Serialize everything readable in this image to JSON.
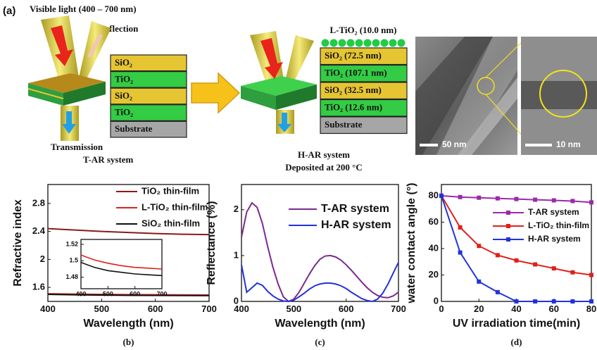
{
  "panel_a": {
    "label": "(a)",
    "light": "Visible light (400 – 700 nm)",
    "reflection": "Reflection",
    "transmission": "Transmission",
    "t_ar": {
      "title": "T-AR system",
      "layers": [
        "SiO₂",
        "TiO₂",
        "SiO₂",
        "TiO₂",
        "Substrate"
      ]
    },
    "h_ar": {
      "title": "H-AR system",
      "subtitle": "Deposited at 200 °C",
      "top_layer": "L-TiO₂ (10.0 nm)",
      "layers": [
        "SiO₂ (72.5 nm)",
        "TiO₂ (107.1 nm)",
        "SiO₂ (32.5 nm)",
        "TiO₂ (12.6 nm)",
        "Substrate"
      ]
    },
    "tem": {
      "scale_1": "50 nm",
      "scale_2": "10 nm"
    }
  },
  "chart_data": [
    {
      "type": "line",
      "panel_label": "(b)",
      "x_label": "Wavelength (nm)",
      "y_label": "Refractive index",
      "x": [
        400,
        450,
        500,
        550,
        600,
        650,
        700
      ],
      "xlim": [
        400,
        700
      ],
      "ylim": [
        1.4,
        3.07
      ],
      "xticks": [
        400,
        500,
        600,
        700
      ],
      "yticks": [
        1.6,
        2.0,
        2.4,
        2.8
      ],
      "series": [
        {
          "name": "TiO₂ thin-film",
          "color": "#8b1a1a",
          "values": [
            2.44,
            2.42,
            2.4,
            2.385,
            2.37,
            2.36,
            2.355
          ]
        },
        {
          "name": "L-TiO₂ thin-film",
          "color": "#e0201b",
          "values": [
            1.51,
            1.505,
            1.5,
            1.497,
            1.495,
            1.493,
            1.492
          ]
        },
        {
          "name": "SiO₂ thin-film",
          "color": "#111111",
          "values": [
            1.5,
            1.494,
            1.49,
            1.487,
            1.485,
            1.484,
            1.483
          ]
        }
      ]
    },
    {
      "type": "line",
      "x": [
        400,
        450,
        500,
        550,
        600,
        650,
        700
      ],
      "xlim": [
        400,
        700
      ],
      "ylim": [
        1.466,
        1.526
      ],
      "xticks": [
        400,
        500,
        600,
        700
      ],
      "yticks": [
        1.48,
        1.5,
        1.52
      ],
      "series": [
        {
          "color": "#e0201b",
          "values": [
            1.507,
            1.501,
            1.497,
            1.494,
            1.492,
            1.491,
            1.49
          ]
        },
        {
          "color": "#111111",
          "values": [
            1.498,
            1.492,
            1.488,
            1.486,
            1.484,
            1.483,
            1.482
          ]
        }
      ]
    },
    {
      "type": "line",
      "panel_label": "(c)",
      "x_label": "Wavelength (nm)",
      "y_label": "Reflectance (%)",
      "x": [
        400,
        410,
        420,
        430,
        440,
        450,
        460,
        470,
        480,
        490,
        500,
        510,
        520,
        530,
        540,
        550,
        560,
        570,
        580,
        590,
        600,
        610,
        620,
        630,
        640,
        650,
        660,
        670,
        680,
        690,
        700
      ],
      "xlim": [
        400,
        700
      ],
      "ylim": [
        0,
        2.55
      ],
      "xticks": [
        400,
        500,
        600,
        700
      ],
      "yticks": [
        0,
        1,
        2
      ],
      "series": [
        {
          "name": "T-AR system",
          "color": "#7b2a8a",
          "values": [
            1.4,
            1.95,
            2.15,
            2.05,
            1.7,
            1.2,
            0.75,
            0.38,
            0.1,
            0.0,
            0.05,
            0.2,
            0.4,
            0.6,
            0.78,
            0.92,
            0.99,
            1.0,
            0.97,
            0.9,
            0.8,
            0.68,
            0.55,
            0.42,
            0.3,
            0.2,
            0.13,
            0.09,
            0.08,
            0.12,
            0.2
          ]
        },
        {
          "name": "H-AR system",
          "color": "#2233dd",
          "values": [
            0.8,
            0.2,
            0.3,
            0.4,
            0.35,
            0.22,
            0.12,
            0.05,
            0.01,
            0.0,
            0.03,
            0.1,
            0.18,
            0.27,
            0.34,
            0.38,
            0.4,
            0.4,
            0.38,
            0.34,
            0.28,
            0.2,
            0.13,
            0.06,
            0.02,
            0.0,
            0.05,
            0.18,
            0.38,
            0.62,
            0.85
          ]
        }
      ]
    },
    {
      "type": "line",
      "panel_label": "(d)",
      "x_label": "UV irradiation time(min)",
      "y_label": "water contact angle (°)",
      "marker": "square",
      "x": [
        0,
        10,
        20,
        30,
        40,
        50,
        60,
        70,
        80
      ],
      "xlim": [
        0,
        80
      ],
      "ylim": [
        0,
        88.5
      ],
      "xticks": [
        0,
        20,
        40,
        60,
        80
      ],
      "yticks": [
        0,
        20,
        40,
        60,
        80
      ],
      "series": [
        {
          "name": "T-AR system",
          "color": "#9b2aa8",
          "values": [
            80,
            79,
            78.5,
            78,
            77.5,
            77,
            76.5,
            76,
            75
          ]
        },
        {
          "name": "L-TiO₂ thin-film",
          "color": "#e0201b",
          "values": [
            80,
            56,
            42,
            35,
            31,
            28,
            25,
            22,
            20
          ]
        },
        {
          "name": "H-AR system",
          "color": "#2233dd",
          "values": [
            80,
            37,
            15,
            7,
            0,
            0,
            0,
            0,
            0
          ]
        }
      ]
    }
  ]
}
